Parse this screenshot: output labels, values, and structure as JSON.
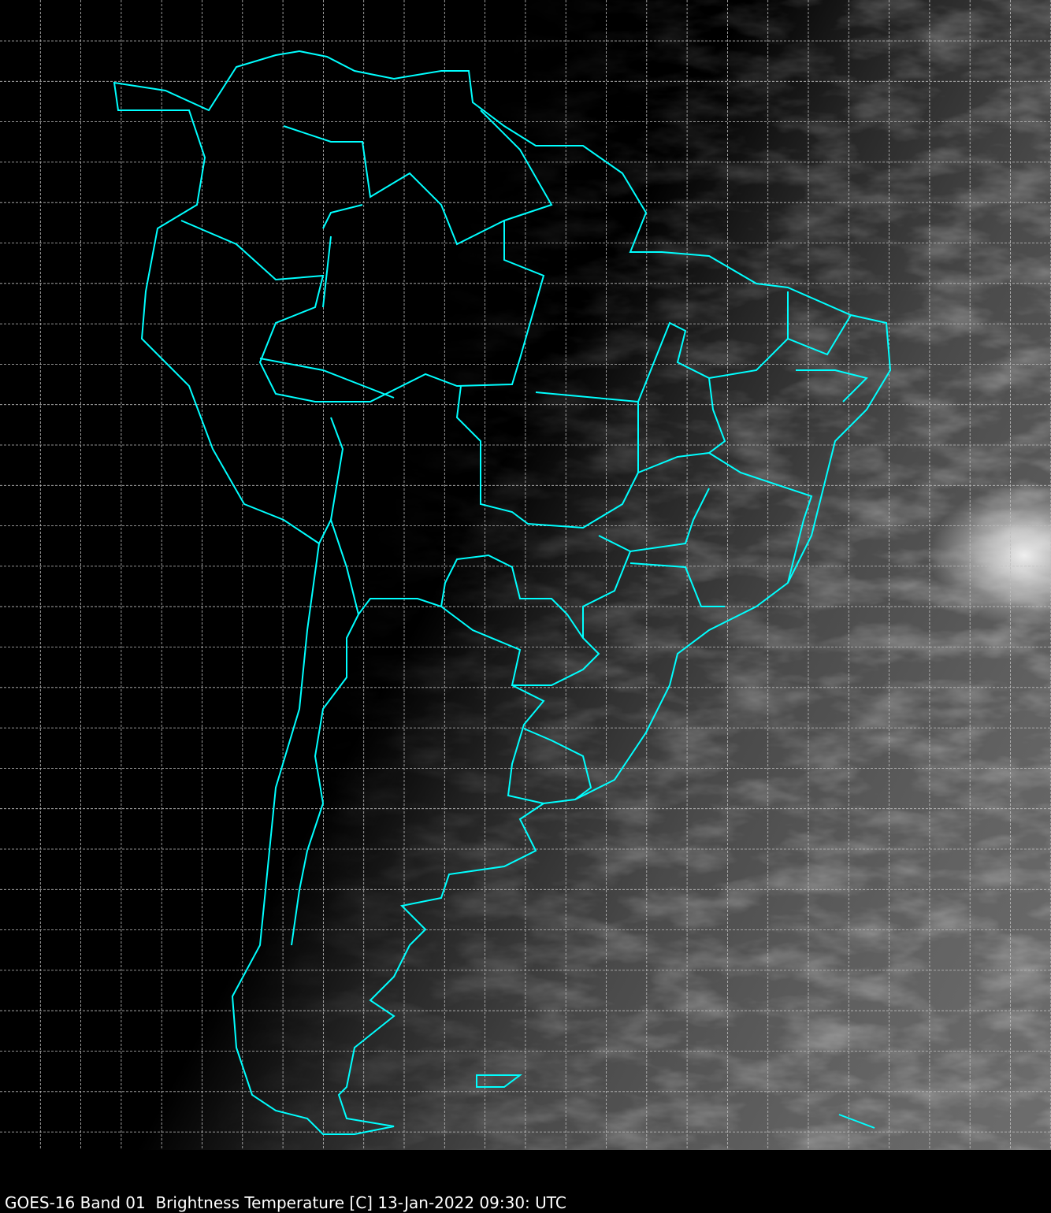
{
  "caption": "GOES-16 Band 01  Brightness Temperature [C] 13-Jan-2022 09:30: UTC",
  "map": {
    "region": "South America",
    "border_color": "#00ffff",
    "grid_color": "#bfbfbf",
    "grid_style": "dashed"
  }
}
